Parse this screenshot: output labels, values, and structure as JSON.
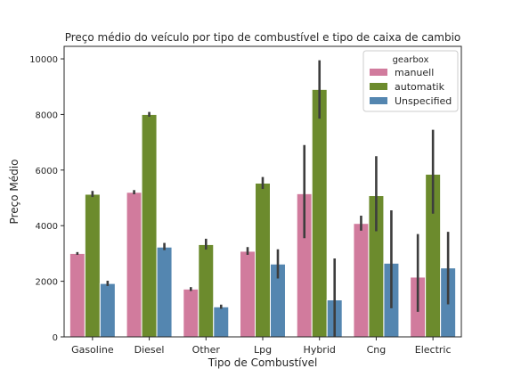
{
  "chart_data": {
    "type": "bar",
    "title": "Preço médio do veículo por tipo de combustível e tipo de caixa de cambio",
    "xlabel": "Tipo de Combustível",
    "ylabel": "Preço Médio",
    "categories": [
      "Gasoline",
      "Diesel",
      "Other",
      "Lpg",
      "Hybrid",
      "Cng",
      "Electric"
    ],
    "ylim": [
      0,
      10450
    ],
    "yticks": [
      0,
      2000,
      4000,
      6000,
      8000,
      10000
    ],
    "grid": false,
    "legend": {
      "title": "gearbox",
      "placement": "top-right"
    },
    "series": [
      {
        "name": "manuell",
        "color": "#d17b9d",
        "values": [
          3000,
          5200,
          1720,
          3080,
          5150,
          4080,
          2150
        ],
        "errors": [
          [
            2950,
            3050
          ],
          [
            5130,
            5280
          ],
          [
            1650,
            1790
          ],
          [
            2950,
            3230
          ],
          [
            3550,
            6900
          ],
          [
            3820,
            4360
          ],
          [
            900,
            3700
          ]
        ]
      },
      {
        "name": "automatik",
        "color": "#6c8b2d",
        "values": [
          5130,
          8000,
          3320,
          5530,
          8900,
          5080,
          5850
        ],
        "errors": [
          [
            5030,
            5250
          ],
          [
            7920,
            8090
          ],
          [
            3140,
            3530
          ],
          [
            5320,
            5750
          ],
          [
            7850,
            9950
          ],
          [
            3800,
            6500
          ],
          [
            4430,
            7450
          ]
        ]
      },
      {
        "name": "Unspecified",
        "color": "#5486b0",
        "values": [
          1920,
          3230,
          1080,
          2620,
          1330,
          2650,
          2480
        ],
        "errors": [
          [
            1830,
            2020
          ],
          [
            3120,
            3380
          ],
          [
            1010,
            1160
          ],
          [
            2100,
            3150
          ],
          [
            0,
            2820
          ],
          [
            1030,
            4550
          ],
          [
            1170,
            3780
          ]
        ]
      }
    ]
  }
}
